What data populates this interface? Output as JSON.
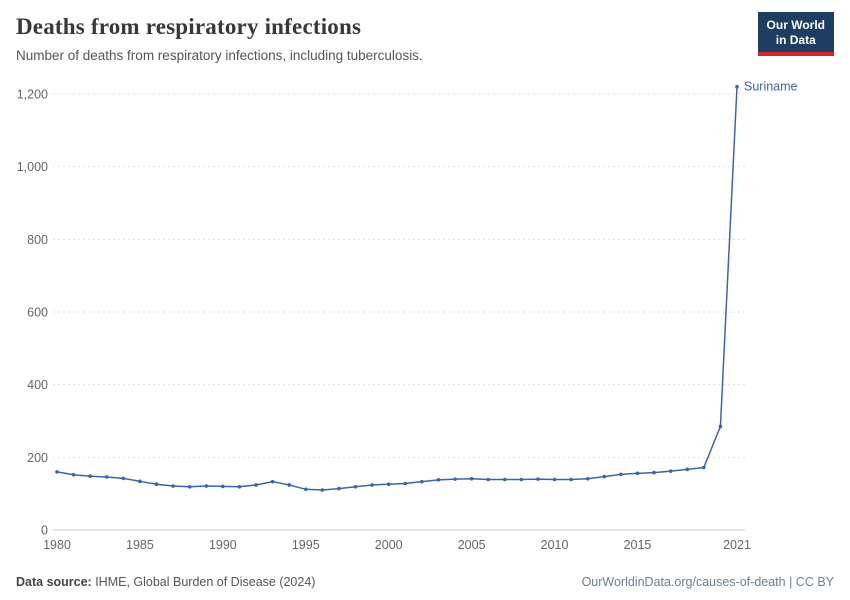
{
  "header": {
    "title": "Deaths from respiratory infections",
    "subtitle": "Number of deaths from respiratory infections, including tuberculosis.",
    "logo": {
      "line1": "Our World",
      "line2": "in Data"
    }
  },
  "footer": {
    "source_label": "Data source:",
    "source_text": " IHME, Global Burden of Disease (2024)",
    "right_text": "OurWorldinData.org/causes-of-death | CC BY"
  },
  "chart_data": {
    "type": "line",
    "title": "Deaths from respiratory infections",
    "subtitle": "Number of deaths from respiratory infections, including tuberculosis.",
    "entity": "Suriname",
    "x": [
      1980,
      1981,
      1982,
      1983,
      1984,
      1985,
      1986,
      1987,
      1988,
      1989,
      1990,
      1991,
      1992,
      1993,
      1994,
      1995,
      1996,
      1997,
      1998,
      1999,
      2000,
      2001,
      2002,
      2003,
      2004,
      2005,
      2006,
      2007,
      2008,
      2009,
      2010,
      2011,
      2012,
      2013,
      2014,
      2015,
      2016,
      2017,
      2018,
      2019,
      2020,
      2021
    ],
    "values": [
      160,
      152,
      148,
      146,
      142,
      134,
      126,
      121,
      119,
      121,
      120,
      119,
      124,
      133,
      124,
      112,
      110,
      114,
      119,
      124,
      126,
      128,
      133,
      138,
      140,
      141,
      139,
      139,
      139,
      140,
      139,
      139,
      141,
      147,
      153,
      156,
      158,
      162,
      167,
      172,
      285,
      1220
    ],
    "ylim": [
      0,
      1200
    ],
    "yticks": [
      0,
      200,
      400,
      600,
      800,
      1000,
      1200
    ],
    "xticks": [
      1980,
      1985,
      1990,
      1995,
      2000,
      2005,
      2010,
      2015,
      2021
    ],
    "xlabel": "",
    "ylabel": "",
    "grid": true,
    "legend_position": "end-of-line-label",
    "line_color": "#3d64a8",
    "grid_color": "#dedede",
    "axis_color": "#c8c8c8"
  }
}
